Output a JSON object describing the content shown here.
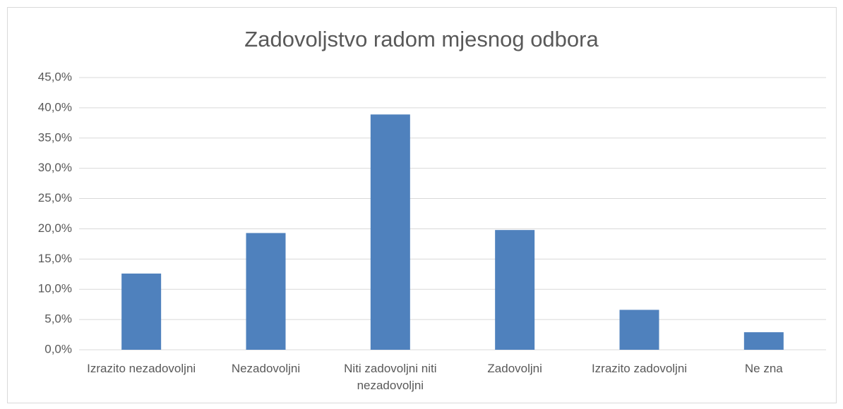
{
  "chart_data": {
    "type": "bar",
    "title": "Zadovoljstvo radom mjesnog odbora",
    "categories": [
      "Izrazito nezadovoljni",
      "Nezadovoljni",
      "Niti zadovoljni niti nezadovoljni",
      "Zadovoljni",
      "Izrazito zadovoljni",
      "Ne zna"
    ],
    "values": [
      12.6,
      19.3,
      38.9,
      19.8,
      6.6,
      2.9
    ],
    "color": "#4f81bd",
    "ylim": [
      0,
      45
    ],
    "yticks": [
      {
        "value": 0,
        "label": "0,0%"
      },
      {
        "value": 5,
        "label": "5,0%"
      },
      {
        "value": 10,
        "label": "10,0%"
      },
      {
        "value": 15,
        "label": "15,0%"
      },
      {
        "value": 20,
        "label": "20,0%"
      },
      {
        "value": 25,
        "label": "25,0%"
      },
      {
        "value": 30,
        "label": "30,0%"
      },
      {
        "value": 35,
        "label": "35,0%"
      },
      {
        "value": 40,
        "label": "40,0%"
      },
      {
        "value": 45,
        "label": "45,0%"
      }
    ],
    "grid": true
  }
}
